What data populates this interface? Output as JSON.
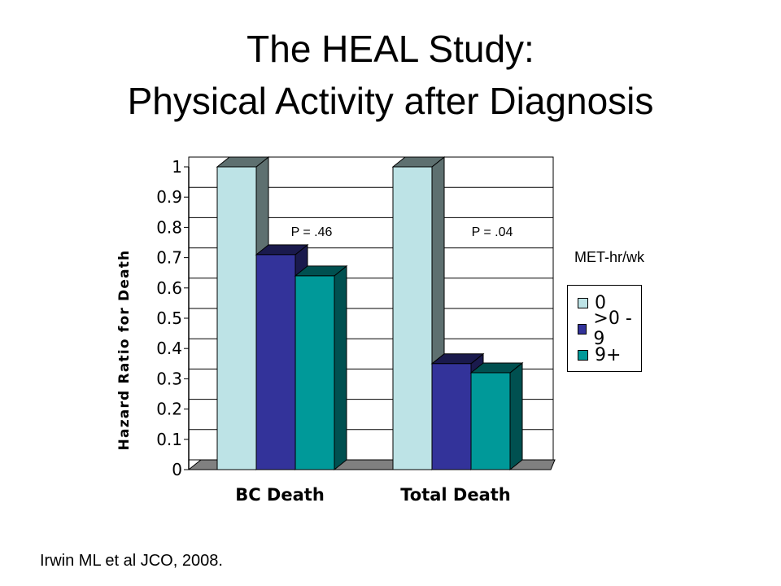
{
  "slide": {
    "title_line1": "The HEAL Study:",
    "title_line2": "Physical Activity after Diagnosis",
    "citation": "Irwin ML et al JCO, 2008."
  },
  "colors": {
    "series_0": "#BDE3E6",
    "series_0_side": "#5E7070",
    "series_1": "#33339A",
    "series_1_side": "#1A1A4D",
    "series_2": "#009999",
    "series_2_side": "#005050",
    "floor": "#808080"
  },
  "chart_data": {
    "type": "bar",
    "categories": [
      "BC Death",
      "Total Death"
    ],
    "series": [
      {
        "name": "0",
        "values": [
          1.0,
          1.0
        ]
      },
      {
        "name": ">0 - 9",
        "values": [
          0.71,
          0.35
        ]
      },
      {
        "name": "9+",
        "values": [
          0.64,
          0.32
        ]
      }
    ],
    "title": "",
    "xlabel": "",
    "ylabel": "Hazard Ratio for Death",
    "ylim": [
      0,
      1
    ],
    "yticks": [
      "0",
      "0.1",
      "0.2",
      "0.3",
      "0.4",
      "0.5",
      "0.6",
      "0.7",
      "0.8",
      "0.9",
      "1"
    ],
    "annotations": [
      "P = .46",
      "P = .04"
    ],
    "legend_title": "MET-hr/wk",
    "legend_position": "right",
    "grid": true
  }
}
